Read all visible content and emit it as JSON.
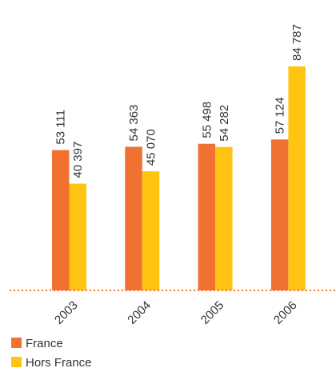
{
  "chart_data": {
    "type": "bar",
    "categories": [
      "2003",
      "2004",
      "2005",
      "2006"
    ],
    "series": [
      {
        "name": "France",
        "color": "#f07132",
        "values": [
          53111,
          54363,
          55498,
          57124
        ],
        "value_labels": [
          "53 111",
          "54 363",
          "55 498",
          "57 124"
        ]
      },
      {
        "name": "Hors France",
        "color": "#ffc312",
        "values": [
          40397,
          45070,
          54282,
          84787
        ],
        "value_labels": [
          "40 397",
          "45 070",
          "54 282",
          "84 787"
        ]
      }
    ],
    "baseline_color": "#f07132"
  }
}
